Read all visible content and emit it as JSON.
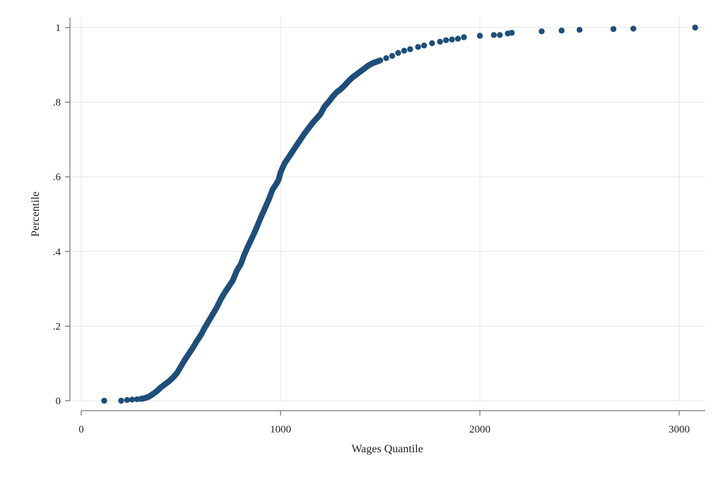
{
  "chart_data": {
    "type": "scatter",
    "xlabel": "Wages Quantile",
    "ylabel": "Percentile",
    "xlim": [
      0,
      3080
    ],
    "ylim": [
      0,
      1
    ],
    "xticks": [
      {
        "value": 0,
        "label": "0"
      },
      {
        "value": 1000,
        "label": "1000"
      },
      {
        "value": 2000,
        "label": "2000"
      },
      {
        "value": 3000,
        "label": "3000"
      }
    ],
    "yticks": [
      {
        "value": 0,
        "label": "0"
      },
      {
        "value": 0.2,
        "label": ".2"
      },
      {
        "value": 0.4,
        "label": ".4"
      },
      {
        "value": 0.6,
        "label": ".6"
      },
      {
        "value": 0.8,
        "label": ".8"
      },
      {
        "value": 1,
        "label": "1"
      }
    ],
    "grid": true,
    "marker_color": "#1f4e79",
    "points": [
      [
        115,
        0.0
      ],
      [
        200,
        0.0
      ],
      [
        230,
        0.002
      ],
      [
        255,
        0.003
      ],
      [
        280,
        0.004
      ],
      [
        300,
        0.005
      ],
      [
        320,
        0.007
      ],
      [
        340,
        0.011
      ],
      [
        360,
        0.018
      ],
      [
        380,
        0.026
      ],
      [
        400,
        0.036
      ],
      [
        420,
        0.044
      ],
      [
        440,
        0.052
      ],
      [
        460,
        0.062
      ],
      [
        480,
        0.074
      ],
      [
        500,
        0.092
      ],
      [
        520,
        0.11
      ],
      [
        540,
        0.126
      ],
      [
        560,
        0.142
      ],
      [
        580,
        0.16
      ],
      [
        600,
        0.176
      ],
      [
        620,
        0.196
      ],
      [
        640,
        0.214
      ],
      [
        660,
        0.232
      ],
      [
        680,
        0.25
      ],
      [
        700,
        0.272
      ],
      [
        720,
        0.29
      ],
      [
        740,
        0.306
      ],
      [
        760,
        0.322
      ],
      [
        780,
        0.348
      ],
      [
        800,
        0.366
      ],
      [
        820,
        0.394
      ],
      [
        840,
        0.418
      ],
      [
        860,
        0.44
      ],
      [
        880,
        0.464
      ],
      [
        900,
        0.49
      ],
      [
        920,
        0.514
      ],
      [
        940,
        0.538
      ],
      [
        960,
        0.566
      ],
      [
        980,
        0.582
      ],
      [
        990,
        0.592
      ],
      [
        1000,
        0.612
      ],
      [
        1020,
        0.636
      ],
      [
        1040,
        0.652
      ],
      [
        1060,
        0.668
      ],
      [
        1080,
        0.684
      ],
      [
        1100,
        0.7
      ],
      [
        1120,
        0.716
      ],
      [
        1140,
        0.73
      ],
      [
        1160,
        0.744
      ],
      [
        1180,
        0.756
      ],
      [
        1200,
        0.768
      ],
      [
        1220,
        0.788
      ],
      [
        1240,
        0.8
      ],
      [
        1260,
        0.814
      ],
      [
        1280,
        0.826
      ],
      [
        1300,
        0.834
      ],
      [
        1320,
        0.844
      ],
      [
        1340,
        0.856
      ],
      [
        1360,
        0.866
      ],
      [
        1380,
        0.874
      ],
      [
        1400,
        0.882
      ],
      [
        1420,
        0.89
      ],
      [
        1440,
        0.898
      ],
      [
        1460,
        0.904
      ],
      [
        1480,
        0.908
      ],
      [
        1500,
        0.912
      ],
      [
        1530,
        0.918
      ],
      [
        1560,
        0.924
      ],
      [
        1590,
        0.932
      ],
      [
        1620,
        0.938
      ],
      [
        1650,
        0.942
      ],
      [
        1690,
        0.948
      ],
      [
        1720,
        0.952
      ],
      [
        1760,
        0.958
      ],
      [
        1800,
        0.962
      ],
      [
        1830,
        0.966
      ],
      [
        1860,
        0.968
      ],
      [
        1890,
        0.97
      ],
      [
        1920,
        0.974
      ],
      [
        2000,
        0.978
      ],
      [
        2070,
        0.98
      ],
      [
        2100,
        0.98
      ],
      [
        2140,
        0.984
      ],
      [
        2160,
        0.986
      ],
      [
        2310,
        0.99
      ],
      [
        2410,
        0.992
      ],
      [
        2500,
        0.994
      ],
      [
        2670,
        0.996
      ],
      [
        2770,
        0.997
      ],
      [
        3080,
        1.0
      ]
    ]
  }
}
